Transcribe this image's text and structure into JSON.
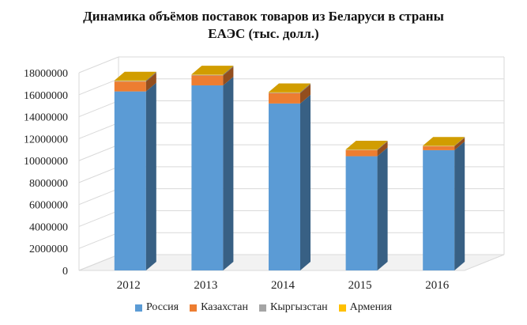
{
  "chart_data": {
    "type": "bar",
    "stacked": true,
    "three_d": true,
    "title_lines": [
      "Динамика объёмов поставок товаров из Беларуси в страны",
      "ЕАЭС (тыс. долл.)"
    ],
    "categories": [
      "2012",
      "2013",
      "2014",
      "2015",
      "2016"
    ],
    "series": [
      {
        "name": "Россия",
        "color": "#5b9bd5",
        "values": [
          16300000,
          16850000,
          15200000,
          10400000,
          10950000
        ]
      },
      {
        "name": "Казахстан",
        "color": "#ed7d31",
        "values": [
          900000,
          900000,
          950000,
          550000,
          350000
        ]
      },
      {
        "name": "Кыргызстан",
        "color": "#a5a5a5",
        "values": [
          60000,
          60000,
          50000,
          40000,
          30000
        ]
      },
      {
        "name": "Армения",
        "color": "#ffc000",
        "values": [
          40000,
          40000,
          40000,
          30000,
          30000
        ]
      }
    ],
    "y_ticks": [
      "0",
      "2000000",
      "4000000",
      "6000000",
      "8000000",
      "10000000",
      "12000000",
      "14000000",
      "16000000",
      "18000000"
    ],
    "ylim": [
      0,
      18000000
    ],
    "grid": true,
    "legend_position": "bottom"
  }
}
